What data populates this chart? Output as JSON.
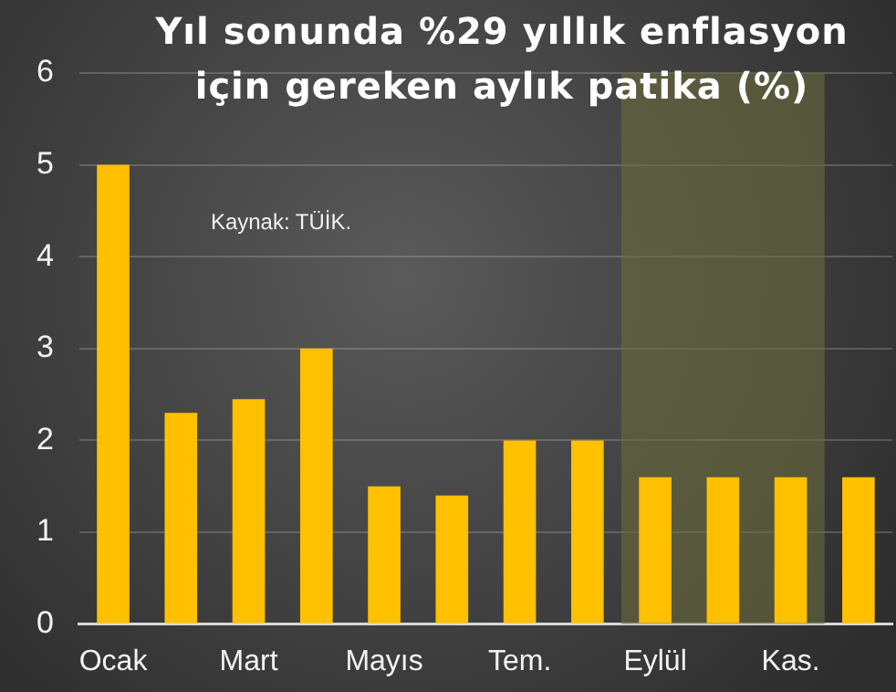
{
  "chart_data": {
    "type": "bar",
    "title": "Yıl sonunda %29 yıllık enflasyon için gereken aylık patika (%)",
    "categories": [
      "Ocak",
      null,
      "Mart",
      null,
      "Mayıs",
      null,
      "Tem.",
      null,
      "Eylül",
      null,
      "Kas.",
      null
    ],
    "values": [
      5.0,
      2.3,
      2.45,
      3.0,
      1.5,
      1.4,
      2.0,
      2.0,
      1.6,
      1.6,
      1.6,
      1.6
    ],
    "color": "#ffc000",
    "ylim": [
      0,
      6
    ],
    "yticks": [
      0,
      1,
      2,
      3,
      4,
      5,
      6
    ],
    "grid": "y",
    "legend": false,
    "bands": [
      {
        "axis": "x",
        "from": "Eylül",
        "to": "Kas.",
        "color": "#6b6b3c"
      }
    ],
    "annotations": [
      "Kaynak: TÜİK."
    ]
  }
}
